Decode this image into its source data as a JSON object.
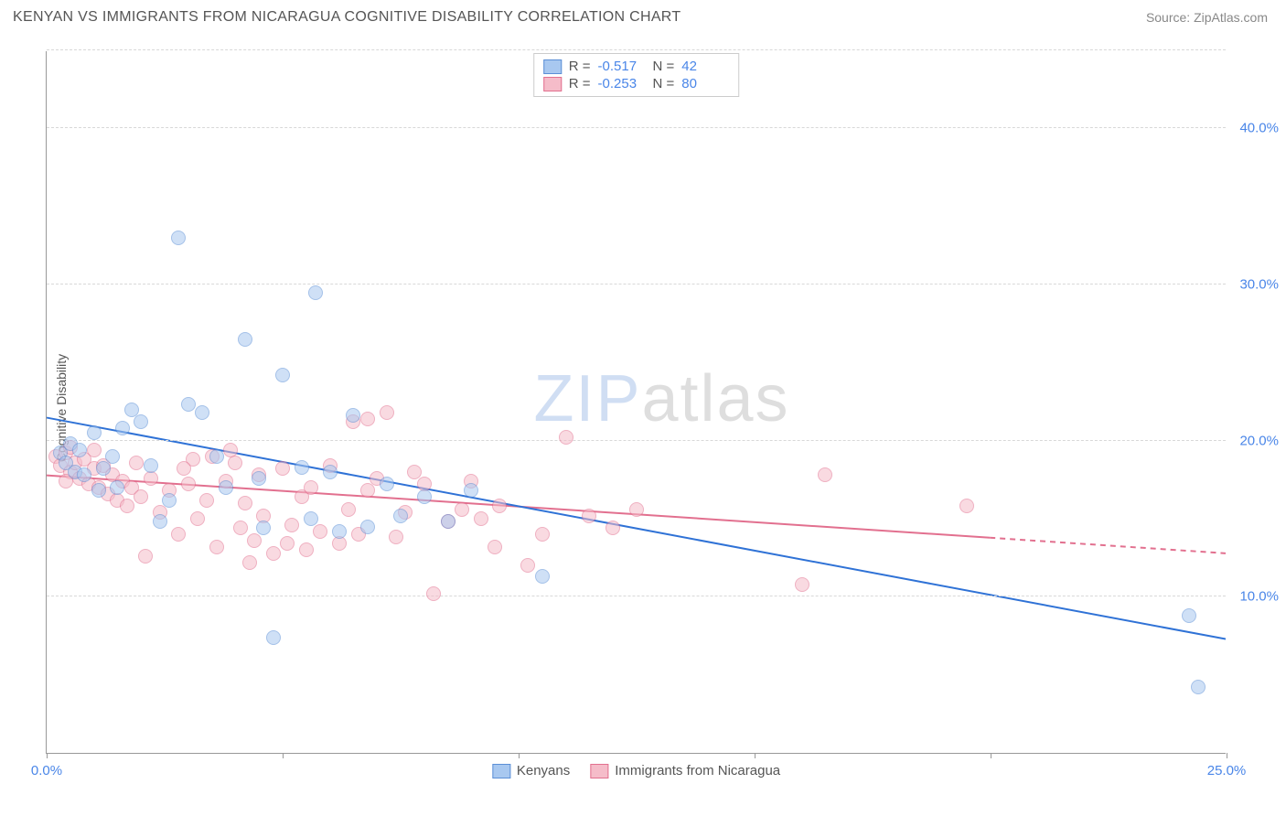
{
  "header": {
    "title": "KENYAN VS IMMIGRANTS FROM NICARAGUA COGNITIVE DISABILITY CORRELATION CHART",
    "source_prefix": "Source: ",
    "source_link": "ZipAtlas.com"
  },
  "chart": {
    "type": "scatter",
    "ylabel": "Cognitive Disability",
    "xlim": [
      0,
      25
    ],
    "ylim": [
      0,
      45
    ],
    "xticks": [
      0,
      5,
      10,
      15,
      20,
      25
    ],
    "xtick_labels": {
      "0": "0.0%",
      "25": "25.0%"
    },
    "yticks": [
      10,
      20,
      30,
      40
    ],
    "ytick_labels": {
      "10": "10.0%",
      "20": "20.0%",
      "30": "30.0%",
      "40": "40.0%"
    },
    "grid_color": "#d8d8d8",
    "axis_color": "#999999",
    "point_radius": 8,
    "point_opacity": 0.55,
    "point_border_width": 1,
    "series": {
      "blue": {
        "label": "Kenyans",
        "fill": "#a8c8f0",
        "stroke": "#5b8fd6",
        "r_value": "-0.517",
        "n_value": "42",
        "trend": {
          "x1": 0,
          "y1": 21.5,
          "x2": 25,
          "y2": 7.3,
          "solid_until_x": 25,
          "color": "#2f72d6",
          "width": 2
        },
        "points": [
          [
            0.3,
            19.2
          ],
          [
            0.4,
            18.6
          ],
          [
            0.5,
            19.8
          ],
          [
            0.6,
            18.0
          ],
          [
            0.7,
            19.4
          ],
          [
            0.8,
            17.8
          ],
          [
            1.0,
            20.5
          ],
          [
            1.2,
            18.2
          ],
          [
            1.4,
            19.0
          ],
          [
            1.6,
            20.8
          ],
          [
            1.8,
            22.0
          ],
          [
            2.0,
            21.2
          ],
          [
            2.2,
            18.4
          ],
          [
            2.4,
            14.8
          ],
          [
            2.8,
            33.0
          ],
          [
            3.0,
            22.3
          ],
          [
            3.3,
            21.8
          ],
          [
            3.6,
            19.0
          ],
          [
            3.8,
            17.0
          ],
          [
            4.2,
            26.5
          ],
          [
            4.5,
            17.6
          ],
          [
            4.6,
            14.4
          ],
          [
            4.8,
            7.4
          ],
          [
            5.0,
            24.2
          ],
          [
            5.4,
            18.3
          ],
          [
            5.6,
            15.0
          ],
          [
            5.7,
            29.5
          ],
          [
            6.0,
            18.0
          ],
          [
            6.2,
            14.2
          ],
          [
            6.5,
            21.6
          ],
          [
            6.8,
            14.5
          ],
          [
            7.2,
            17.2
          ],
          [
            7.5,
            15.2
          ],
          [
            8.0,
            16.4
          ],
          [
            8.5,
            14.8
          ],
          [
            9.0,
            16.8
          ],
          [
            10.5,
            11.3
          ],
          [
            24.2,
            8.8
          ],
          [
            24.4,
            4.2
          ],
          [
            1.5,
            17.0
          ],
          [
            2.6,
            16.2
          ],
          [
            1.1,
            16.8
          ]
        ]
      },
      "pink": {
        "label": "Immigrants from Nicaragua",
        "fill": "#f5bcc9",
        "stroke": "#e2708f",
        "r_value": "-0.253",
        "n_value": "80",
        "trend": {
          "x1": 0,
          "y1": 17.8,
          "x2": 25,
          "y2": 12.8,
          "solid_until_x": 20,
          "color": "#e2708f",
          "width": 2
        },
        "points": [
          [
            0.2,
            19.0
          ],
          [
            0.3,
            18.4
          ],
          [
            0.4,
            19.2
          ],
          [
            0.5,
            18.0
          ],
          [
            0.5,
            19.6
          ],
          [
            0.6,
            18.6
          ],
          [
            0.7,
            17.6
          ],
          [
            0.8,
            18.8
          ],
          [
            0.9,
            17.2
          ],
          [
            1.0,
            18.2
          ],
          [
            1.1,
            17.0
          ],
          [
            1.2,
            18.4
          ],
          [
            1.3,
            16.6
          ],
          [
            1.4,
            17.8
          ],
          [
            1.5,
            16.2
          ],
          [
            1.6,
            17.4
          ],
          [
            1.7,
            15.8
          ],
          [
            1.8,
            17.0
          ],
          [
            1.9,
            18.6
          ],
          [
            2.0,
            16.4
          ],
          [
            2.1,
            12.6
          ],
          [
            2.2,
            17.6
          ],
          [
            2.4,
            15.4
          ],
          [
            2.6,
            16.8
          ],
          [
            2.8,
            14.0
          ],
          [
            3.0,
            17.2
          ],
          [
            3.1,
            18.8
          ],
          [
            3.2,
            15.0
          ],
          [
            3.4,
            16.2
          ],
          [
            3.5,
            19.0
          ],
          [
            3.6,
            13.2
          ],
          [
            3.8,
            17.4
          ],
          [
            4.0,
            18.6
          ],
          [
            4.1,
            14.4
          ],
          [
            4.2,
            16.0
          ],
          [
            4.4,
            13.6
          ],
          [
            4.5,
            17.8
          ],
          [
            4.6,
            15.2
          ],
          [
            4.8,
            12.8
          ],
          [
            5.0,
            18.2
          ],
          [
            5.2,
            14.6
          ],
          [
            5.4,
            16.4
          ],
          [
            5.5,
            13.0
          ],
          [
            5.6,
            17.0
          ],
          [
            5.8,
            14.2
          ],
          [
            6.0,
            18.4
          ],
          [
            6.2,
            13.4
          ],
          [
            6.4,
            15.6
          ],
          [
            6.5,
            21.2
          ],
          [
            6.6,
            14.0
          ],
          [
            6.8,
            16.8
          ],
          [
            7.0,
            17.6
          ],
          [
            7.2,
            21.8
          ],
          [
            7.4,
            13.8
          ],
          [
            7.6,
            15.4
          ],
          [
            7.8,
            18.0
          ],
          [
            8.0,
            17.2
          ],
          [
            8.2,
            10.2
          ],
          [
            8.5,
            14.8
          ],
          [
            8.8,
            15.6
          ],
          [
            9.0,
            17.4
          ],
          [
            9.2,
            15.0
          ],
          [
            9.5,
            13.2
          ],
          [
            9.6,
            15.8
          ],
          [
            10.2,
            12.0
          ],
          [
            10.5,
            14.0
          ],
          [
            11.0,
            20.2
          ],
          [
            11.5,
            15.2
          ],
          [
            12.0,
            14.4
          ],
          [
            12.5,
            15.6
          ],
          [
            16.0,
            10.8
          ],
          [
            16.5,
            17.8
          ],
          [
            19.5,
            15.8
          ],
          [
            6.8,
            21.4
          ],
          [
            3.9,
            19.4
          ],
          [
            4.3,
            12.2
          ],
          [
            5.1,
            13.4
          ],
          [
            2.9,
            18.2
          ],
          [
            1.0,
            19.4
          ],
          [
            0.4,
            17.4
          ]
        ]
      }
    },
    "stats_legend": {
      "r_label": "R =",
      "n_label": "N ="
    },
    "watermark": {
      "zip": "ZIP",
      "atlas": "atlas"
    }
  }
}
